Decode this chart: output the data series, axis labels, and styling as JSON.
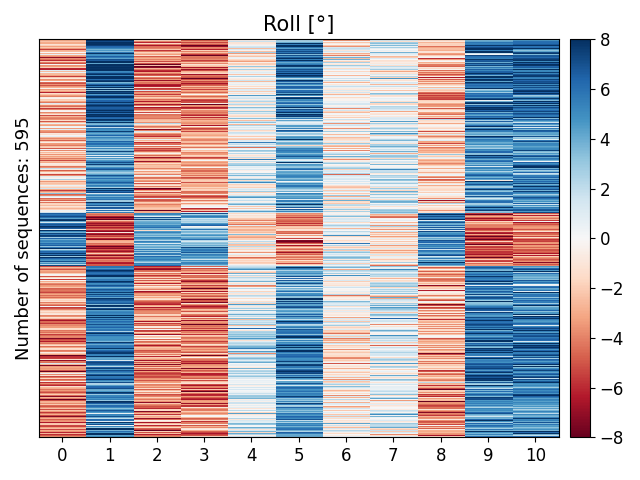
{
  "title": "Roll [°]",
  "ylabel": "Number of sequences: 595",
  "n_rows": 595,
  "n_cols": 11,
  "vmin": -8,
  "vmax": 8,
  "cmap": "RdBu",
  "xtick_labels": [
    "0",
    "1",
    "2",
    "3",
    "4",
    "5",
    "6",
    "7",
    "8",
    "9",
    "10"
  ],
  "colorbar_ticks": [
    -8,
    -6,
    -4,
    -2,
    0,
    2,
    4,
    6,
    8
  ],
  "title_fontsize": 15,
  "label_fontsize": 13,
  "tick_fontsize": 12,
  "seed": 7,
  "groups": [
    {
      "rows": [
        0,
        120
      ],
      "col_vals": [
        -3,
        7,
        -4,
        -4,
        0,
        6,
        0,
        0,
        -3,
        6,
        6
      ]
    },
    {
      "rows": [
        120,
        260
      ],
      "col_vals": [
        -2,
        5,
        -3,
        -3,
        1,
        4,
        0,
        1,
        -2,
        5,
        5
      ]
    },
    {
      "rows": [
        260,
        340
      ],
      "col_vals": [
        6,
        -5,
        4,
        4,
        -1,
        -4,
        1,
        -1,
        5,
        -5,
        -4
      ]
    },
    {
      "rows": [
        340,
        430
      ],
      "col_vals": [
        -3,
        6,
        -4,
        -4,
        1,
        5,
        0,
        1,
        -3,
        6,
        5
      ]
    },
    {
      "rows": [
        430,
        510
      ],
      "col_vals": [
        -4,
        6,
        -4,
        -4,
        2,
        6,
        -1,
        1,
        -3,
        6,
        6
      ]
    },
    {
      "rows": [
        510,
        595
      ],
      "col_vals": [
        -4,
        5,
        -4,
        -4,
        1,
        5,
        0,
        1,
        -4,
        5,
        5
      ]
    }
  ],
  "noise_std": 1.8
}
